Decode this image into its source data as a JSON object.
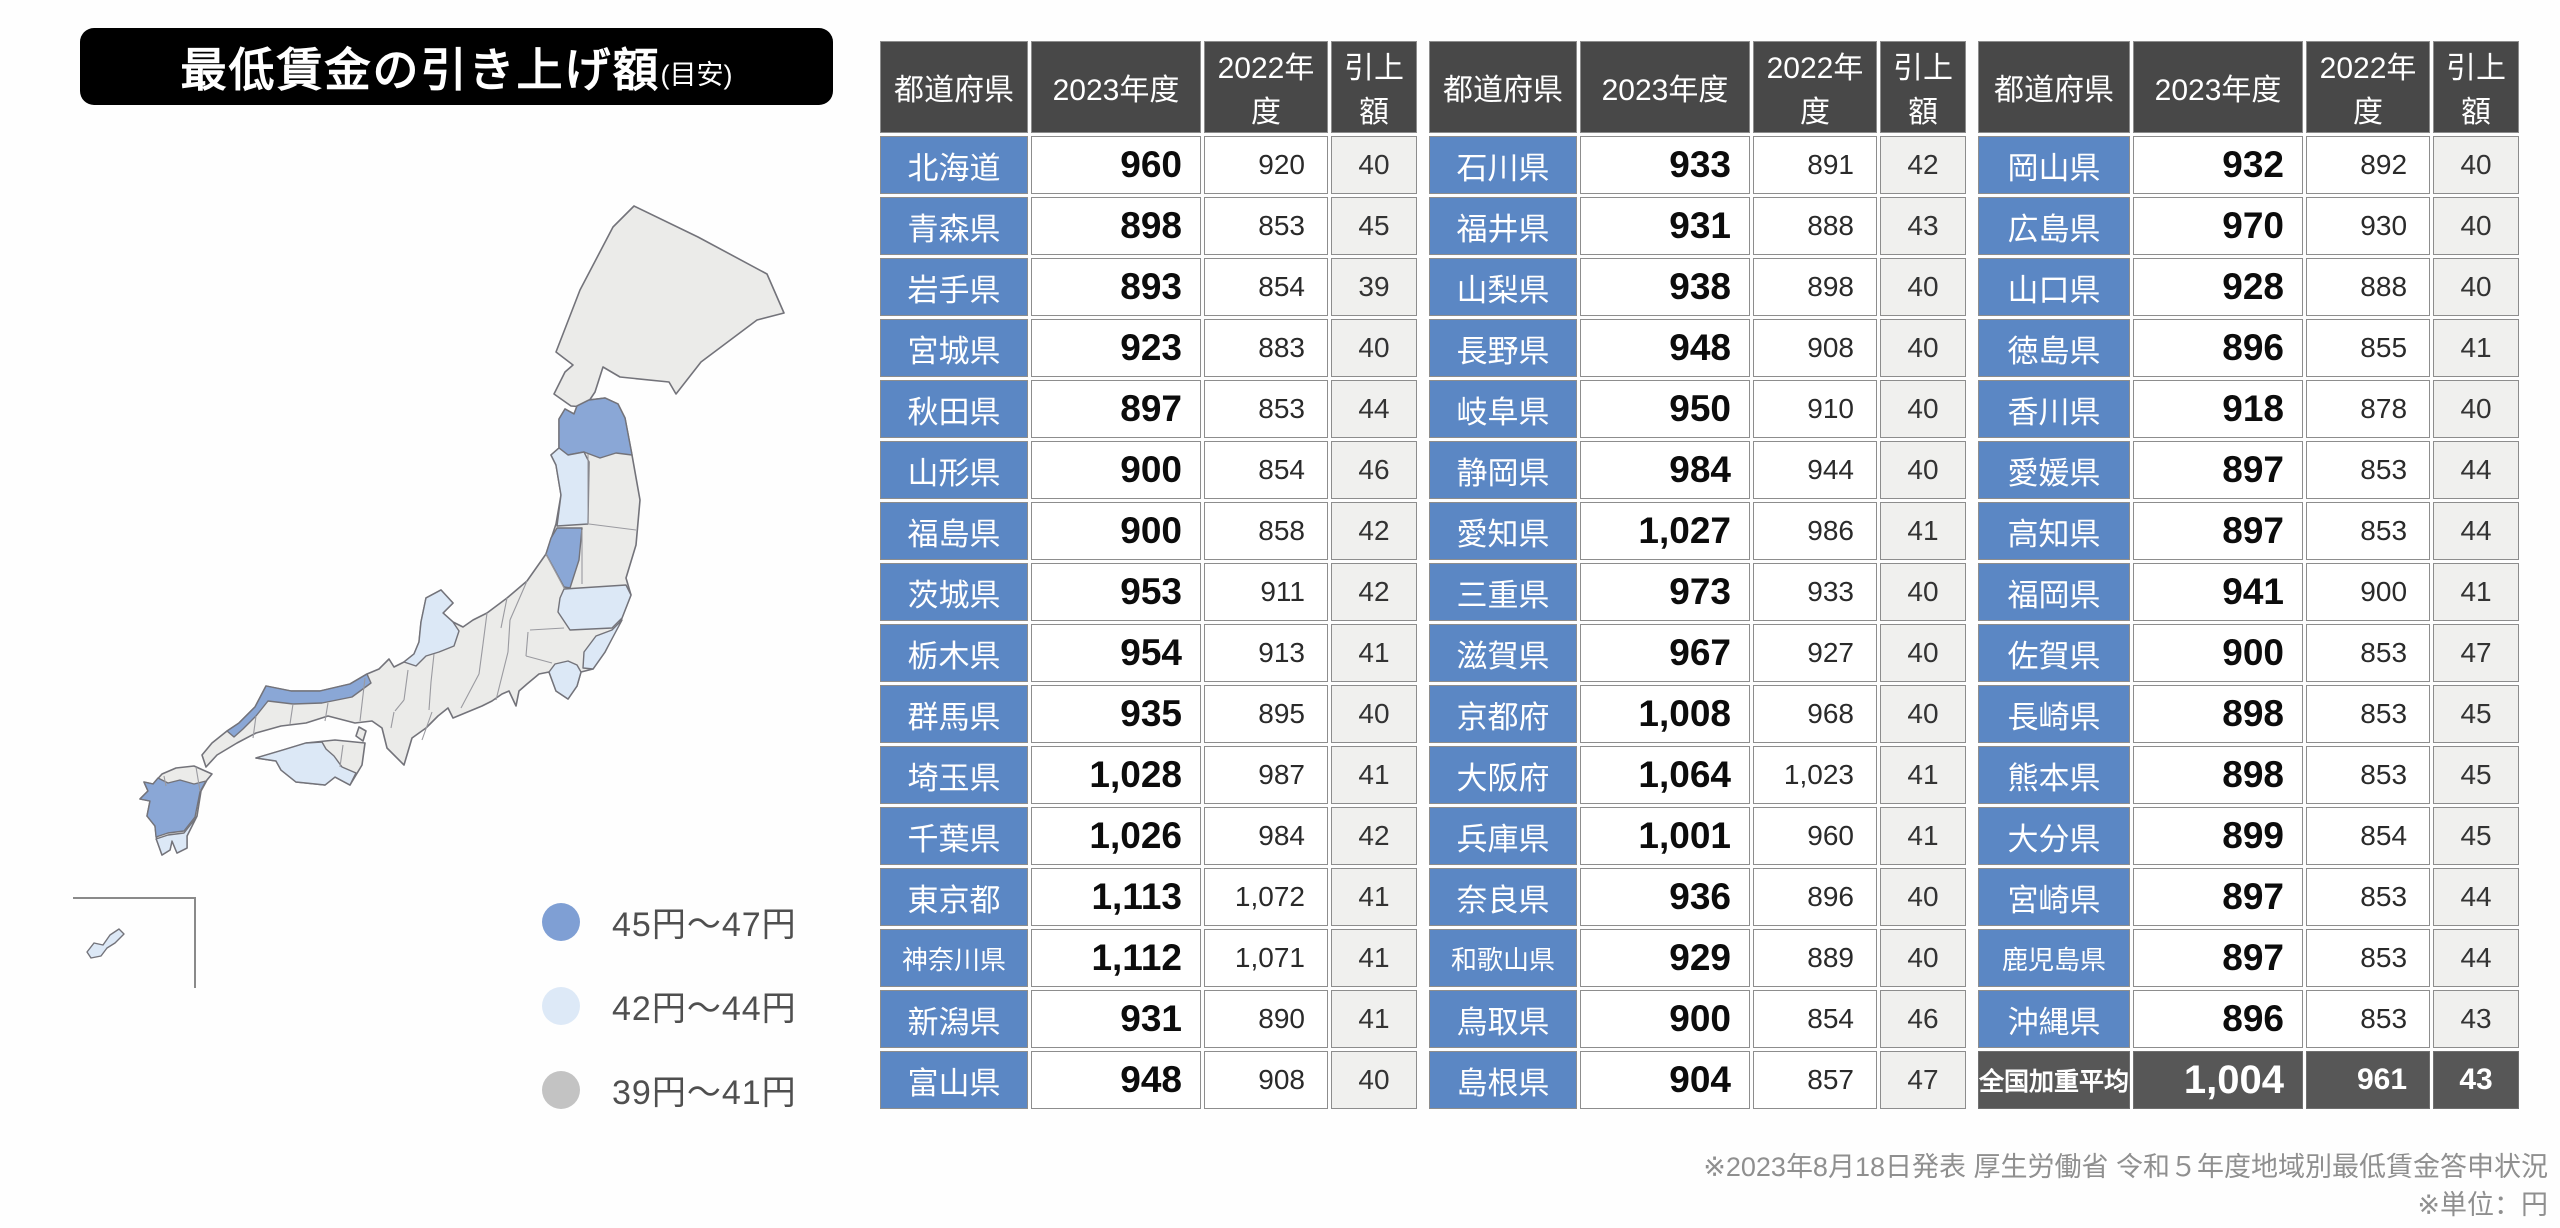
{
  "title": {
    "main": "最低賃金の引き上げ額",
    "suffix": "(目安)"
  },
  "table": {
    "headers": [
      "都道府県",
      "2023年度",
      "2022年度",
      "引上額"
    ]
  },
  "legend": {
    "items": [
      {
        "label": "45円〜47円",
        "color": "#7f9fd4"
      },
      {
        "label": "42円〜44円",
        "color": "#dde9f7"
      },
      {
        "label": "39円〜41円",
        "color": "#c3c3c3"
      }
    ]
  },
  "footer": {
    "line1": "※2023年8月18日発表 厚生労働省 令和５年度地域別最低賃金答申状況",
    "line2": "※単位：円"
  },
  "colors": {
    "title_bg": "#000000",
    "pref_blue": "#5b87c4",
    "header_bg": "#484848",
    "total_bg": "#575757",
    "increase_bg": "#f0f0ee",
    "map_base": "#ebebe9",
    "map_stroke": "#73737a",
    "map_blue_mid": "#8aa7d6",
    "map_blue_light": "#dce8f6"
  },
  "chart_data": {
    "type": "table",
    "title": "最低賃金の引き上げ額(目安)",
    "unit": "円",
    "columns": [
      "都道府県",
      "2023年度",
      "2022年度",
      "引上額"
    ],
    "rows": [
      [
        "北海道",
        960,
        920,
        40
      ],
      [
        "青森県",
        898,
        853,
        45
      ],
      [
        "岩手県",
        893,
        854,
        39
      ],
      [
        "宮城県",
        923,
        883,
        40
      ],
      [
        "秋田県",
        897,
        853,
        44
      ],
      [
        "山形県",
        900,
        854,
        46
      ],
      [
        "福島県",
        900,
        858,
        42
      ],
      [
        "茨城県",
        953,
        911,
        42
      ],
      [
        "栃木県",
        954,
        913,
        41
      ],
      [
        "群馬県",
        935,
        895,
        40
      ],
      [
        "埼玉県",
        1028,
        987,
        41
      ],
      [
        "千葉県",
        1026,
        984,
        42
      ],
      [
        "東京都",
        1113,
        1072,
        41
      ],
      [
        "神奈川県",
        1112,
        1071,
        41
      ],
      [
        "新潟県",
        931,
        890,
        41
      ],
      [
        "富山県",
        948,
        908,
        40
      ],
      [
        "石川県",
        933,
        891,
        42
      ],
      [
        "福井県",
        931,
        888,
        43
      ],
      [
        "山梨県",
        938,
        898,
        40
      ],
      [
        "長野県",
        948,
        908,
        40
      ],
      [
        "岐阜県",
        950,
        910,
        40
      ],
      [
        "静岡県",
        984,
        944,
        40
      ],
      [
        "愛知県",
        1027,
        986,
        41
      ],
      [
        "三重県",
        973,
        933,
        40
      ],
      [
        "滋賀県",
        967,
        927,
        40
      ],
      [
        "京都府",
        1008,
        968,
        40
      ],
      [
        "大阪府",
        1064,
        1023,
        41
      ],
      [
        "兵庫県",
        1001,
        960,
        41
      ],
      [
        "奈良県",
        936,
        896,
        40
      ],
      [
        "和歌山県",
        929,
        889,
        40
      ],
      [
        "鳥取県",
        900,
        854,
        46
      ],
      [
        "島根県",
        904,
        857,
        47
      ],
      [
        "岡山県",
        932,
        892,
        40
      ],
      [
        "広島県",
        970,
        930,
        40
      ],
      [
        "山口県",
        928,
        888,
        40
      ],
      [
        "徳島県",
        896,
        855,
        41
      ],
      [
        "香川県",
        918,
        878,
        40
      ],
      [
        "愛媛県",
        897,
        853,
        44
      ],
      [
        "高知県",
        897,
        853,
        44
      ],
      [
        "福岡県",
        941,
        900,
        41
      ],
      [
        "佐賀県",
        900,
        853,
        47
      ],
      [
        "長崎県",
        898,
        853,
        45
      ],
      [
        "熊本県",
        898,
        853,
        45
      ],
      [
        "大分県",
        899,
        854,
        45
      ],
      [
        "宮崎県",
        897,
        853,
        44
      ],
      [
        "鹿児島県",
        897,
        853,
        44
      ],
      [
        "沖縄県",
        896,
        853,
        43
      ],
      [
        "全国加重平均",
        1004,
        961,
        43
      ]
    ],
    "legend_bins": [
      {
        "range": "45円〜47円",
        "color_key": "map_blue_mid"
      },
      {
        "range": "42円〜44円",
        "color_key": "map_blue_light"
      },
      {
        "range": "39円〜41円",
        "color_key": "map_base"
      }
    ]
  }
}
